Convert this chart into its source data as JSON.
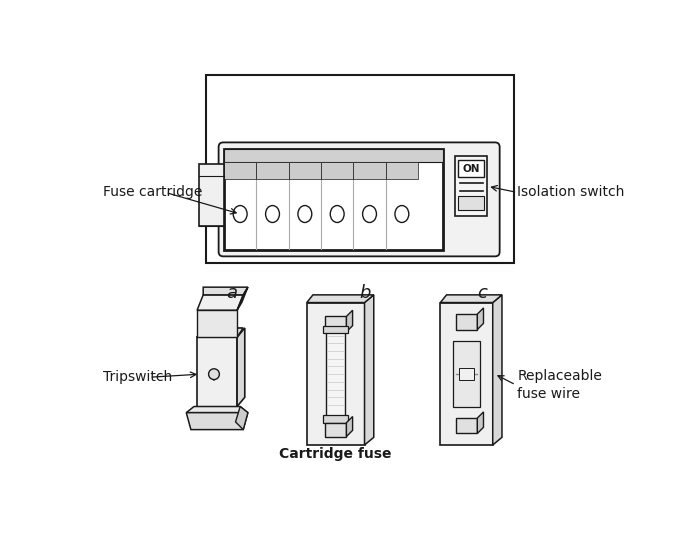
{
  "bg_color": "#ffffff",
  "lc": "#1a1a1a",
  "labels": {
    "fuse_cartridge": "Fuse cartridge",
    "isolation_switch": "Isolation switch",
    "tripswitch": "Tripswitch",
    "cartridge_fuse": "Cartridge fuse",
    "replaceable_fuse_wire": "Replaceable\nfuse wire",
    "a": "a",
    "b": "b",
    "c": "c",
    "on": "ON"
  },
  "font_size_label": 10,
  "font_size_letter": 13
}
